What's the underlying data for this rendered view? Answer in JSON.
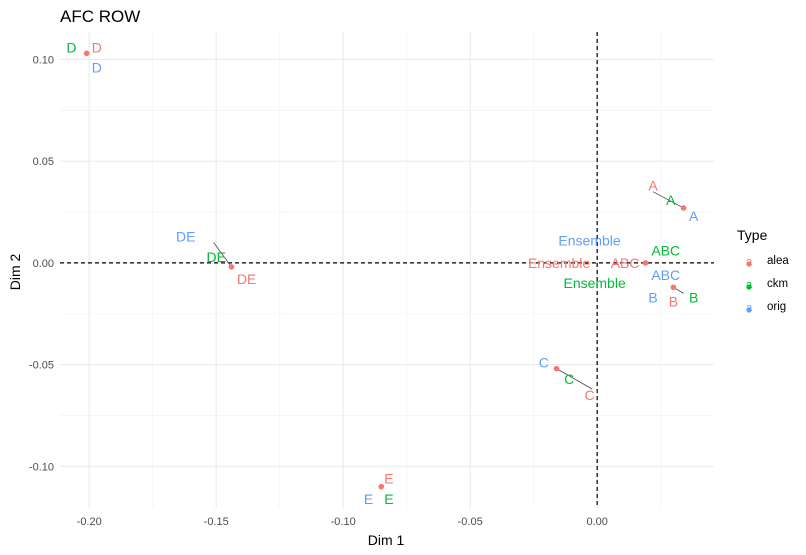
{
  "chart_data": {
    "type": "scatter",
    "title": "AFC ROW",
    "xlabel": "Dim 1",
    "ylabel": "Dim 2",
    "xlim": [
      -0.2115,
      0.046
    ],
    "ylim": [
      -0.1205,
      0.1135
    ],
    "x_ticks": [
      -0.2,
      -0.15,
      -0.1,
      -0.05,
      0.0
    ],
    "x_tick_labels": [
      "-0.20",
      "-0.15",
      "-0.10",
      "-0.05",
      "0.00"
    ],
    "y_ticks": [
      -0.1,
      -0.05,
      0.0,
      0.05,
      0.1
    ],
    "y_tick_labels": [
      "-0.10",
      "-0.05",
      "0.00",
      "0.05",
      "0.10"
    ],
    "grid": true,
    "reference_lines": {
      "x": 0,
      "y": 0
    },
    "legend": {
      "title": "Type",
      "placement": "right",
      "entries": [
        {
          "glyph": "a",
          "label": "alea",
          "color": "#F8766D"
        },
        {
          "glyph": "a",
          "label": "ckm",
          "color": "#00BA38"
        },
        {
          "glyph": "a",
          "label": "orig",
          "color": "#619CFF"
        }
      ]
    },
    "series_colors": {
      "alea": "#F8766D",
      "ckm": "#00BA38",
      "orig": "#619CFF"
    },
    "points": [
      {
        "x": -0.201,
        "y": 0.103
      },
      {
        "x": -0.144,
        "y": -0.002
      },
      {
        "x": 0.034,
        "y": 0.027
      },
      {
        "x": 0.03,
        "y": -0.012
      },
      {
        "x": 0.019,
        "y": 0.0
      },
      {
        "x": -0.016,
        "y": -0.052
      },
      {
        "x": -0.085,
        "y": -0.11
      }
    ],
    "connectors": [
      {
        "from": [
          -0.151,
          0.01
        ],
        "to": [
          -0.144,
          -0.002
        ]
      },
      {
        "from": [
          0.022,
          0.035
        ],
        "to": [
          0.034,
          0.027
        ]
      },
      {
        "from": [
          -0.002,
          -0.062
        ],
        "to": [
          -0.016,
          -0.052
        ]
      },
      {
        "from": [
          0.034,
          -0.015
        ],
        "to": [
          0.03,
          -0.012
        ]
      }
    ],
    "labels": [
      {
        "text": "D",
        "type": "alea",
        "x": -0.197,
        "y": 0.106
      },
      {
        "text": "D",
        "type": "ckm",
        "x": -0.207,
        "y": 0.106
      },
      {
        "text": "D",
        "type": "orig",
        "x": -0.197,
        "y": 0.096
      },
      {
        "text": "DE",
        "type": "orig",
        "x": -0.162,
        "y": 0.013
      },
      {
        "text": "DE",
        "type": "ckm",
        "x": -0.15,
        "y": 0.003
      },
      {
        "text": "DE",
        "type": "alea",
        "x": -0.138,
        "y": -0.008
      },
      {
        "text": "A",
        "type": "alea",
        "x": 0.022,
        "y": 0.038
      },
      {
        "text": "A",
        "type": "ckm",
        "x": 0.029,
        "y": 0.031
      },
      {
        "text": "A",
        "type": "orig",
        "x": 0.038,
        "y": 0.023
      },
      {
        "text": "Ensemble",
        "type": "orig",
        "x": -0.003,
        "y": 0.011
      },
      {
        "text": "Ensemble",
        "type": "alea",
        "x": -0.015,
        "y": 0.0
      },
      {
        "text": "Ensemble",
        "type": "ckm",
        "x": -0.001,
        "y": -0.01
      },
      {
        "text": "ABC",
        "type": "ckm",
        "x": 0.027,
        "y": 0.006
      },
      {
        "text": "ABC",
        "type": "alea",
        "x": 0.011,
        "y": 0.0
      },
      {
        "text": "ABC",
        "type": "orig",
        "x": 0.027,
        "y": -0.006
      },
      {
        "text": "B",
        "type": "orig",
        "x": 0.022,
        "y": -0.017
      },
      {
        "text": "B",
        "type": "ckm",
        "x": 0.038,
        "y": -0.017
      },
      {
        "text": "B",
        "type": "alea",
        "x": 0.03,
        "y": -0.019
      },
      {
        "text": "C",
        "type": "orig",
        "x": -0.021,
        "y": -0.049
      },
      {
        "text": "C",
        "type": "ckm",
        "x": -0.011,
        "y": -0.057
      },
      {
        "text": "C",
        "type": "alea",
        "x": -0.003,
        "y": -0.065
      },
      {
        "text": "E",
        "type": "alea",
        "x": -0.082,
        "y": -0.106
      },
      {
        "text": "E",
        "type": "orig",
        "x": -0.09,
        "y": -0.116
      },
      {
        "text": "E",
        "type": "ckm",
        "x": -0.082,
        "y": -0.116
      }
    ]
  }
}
